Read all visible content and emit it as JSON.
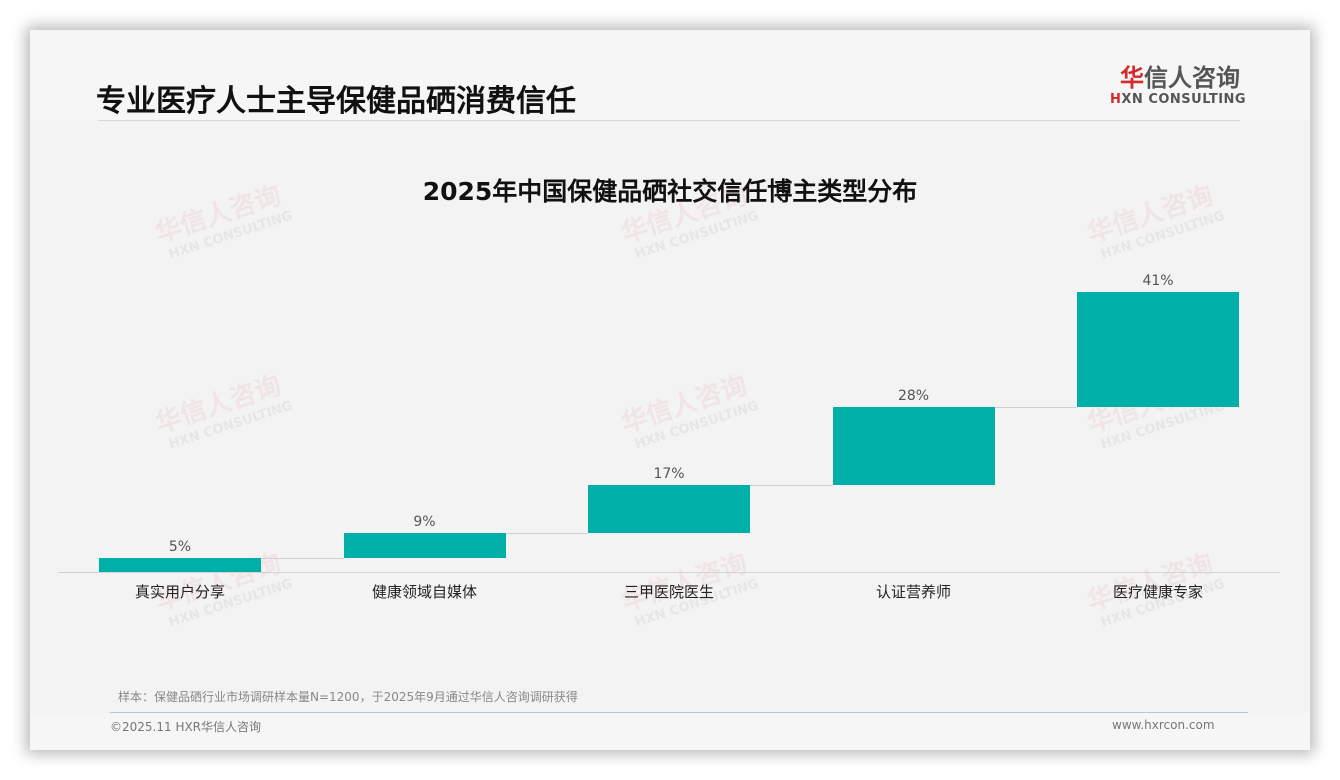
{
  "header": {
    "title": "专业医疗人士主导保健品硒消费信任",
    "logo_cn_accent": "华",
    "logo_cn_rest": "信人咨询",
    "logo_en_accent": "H",
    "logo_en_rest": "XN CONSULTING"
  },
  "watermark": {
    "cn": "华信人咨询",
    "en": "HXN CONSULTING"
  },
  "colors": {
    "bar": "#00b0a8",
    "logo_accent": "#d42a2a",
    "title": "#111111"
  },
  "chart_data": {
    "type": "bar",
    "subtype": "waterfall",
    "title": "2025年中国保健品硒社交信任博主类型分布",
    "categories": [
      "真实用户分享",
      "健康领域自媒体",
      "三甲医院医生",
      "认证营养师",
      "医疗健康专家"
    ],
    "values": [
      5,
      9,
      17,
      28,
      41
    ],
    "value_labels": [
      "5%",
      "9%",
      "17%",
      "28%",
      "41%"
    ],
    "unit": "%",
    "xlabel": "",
    "ylabel": "",
    "grid": false,
    "legend": null
  },
  "footer": {
    "note": "样本：保健品硒行业市场调研样本量N=1200，于2025年9月通过华信人咨询调研获得",
    "copyright": "©2025.11 HXR华信人咨询",
    "website": "www.hxrcon.com"
  }
}
